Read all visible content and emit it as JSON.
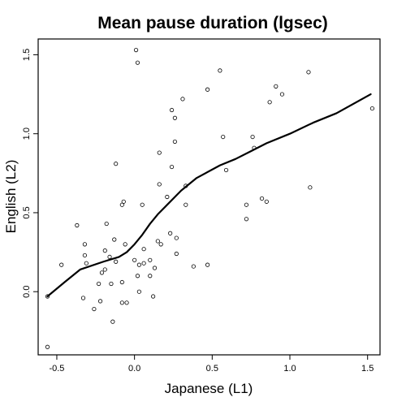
{
  "chart_data": {
    "type": "scatter",
    "title": "Mean pause duration (lgsec)",
    "xlabel": "Japanese (L1)",
    "ylabel": "English (L2)",
    "xlim": [
      -0.62,
      1.58
    ],
    "ylim": [
      -0.4,
      1.6
    ],
    "x_ticks": [
      -0.5,
      0.0,
      0.5,
      1.0,
      1.5
    ],
    "x_tick_labels": [
      "-0.5",
      "0.0",
      "0.5",
      "1.0",
      "1.5"
    ],
    "y_ticks": [
      0.0,
      0.5,
      1.0,
      1.5
    ],
    "y_tick_labels": [
      "0.0",
      "0.5",
      "1.0",
      "1.5"
    ],
    "grid": false,
    "legend": "none",
    "series": [
      {
        "type": "scatter",
        "marker": "open-circle",
        "points": [
          [
            -0.56,
            -0.35
          ],
          [
            -0.56,
            -0.03
          ],
          [
            -0.47,
            0.17
          ],
          [
            -0.37,
            0.42
          ],
          [
            -0.32,
            0.3
          ],
          [
            -0.31,
            0.18
          ],
          [
            -0.32,
            0.23
          ],
          [
            -0.33,
            -0.04
          ],
          [
            -0.26,
            -0.11
          ],
          [
            -0.23,
            0.05
          ],
          [
            -0.22,
            -0.06
          ],
          [
            -0.21,
            0.12
          ],
          [
            -0.19,
            0.14
          ],
          [
            -0.19,
            0.26
          ],
          [
            -0.18,
            0.43
          ],
          [
            -0.16,
            0.22
          ],
          [
            -0.15,
            0.05
          ],
          [
            -0.14,
            -0.19
          ],
          [
            -0.13,
            0.33
          ],
          [
            -0.12,
            0.81
          ],
          [
            -0.12,
            0.19
          ],
          [
            -0.08,
            0.55
          ],
          [
            -0.07,
            0.57
          ],
          [
            -0.06,
            0.3
          ],
          [
            -0.08,
            0.06
          ],
          [
            -0.08,
            -0.07
          ],
          [
            -0.05,
            -0.07
          ],
          [
            0.0,
            0.2
          ],
          [
            0.01,
            1.53
          ],
          [
            0.02,
            1.45
          ],
          [
            0.02,
            0.1
          ],
          [
            0.03,
            0.17
          ],
          [
            0.03,
            0.0
          ],
          [
            0.05,
            0.55
          ],
          [
            0.06,
            0.18
          ],
          [
            0.06,
            0.27
          ],
          [
            0.1,
            0.2
          ],
          [
            0.1,
            0.1
          ],
          [
            0.12,
            -0.03
          ],
          [
            0.13,
            0.15
          ],
          [
            0.16,
            0.88
          ],
          [
            0.16,
            0.68
          ],
          [
            0.15,
            0.32
          ],
          [
            0.17,
            0.3
          ],
          [
            0.21,
            0.6
          ],
          [
            0.23,
            0.37
          ],
          [
            0.24,
            0.79
          ],
          [
            0.24,
            1.15
          ],
          [
            0.26,
            0.95
          ],
          [
            0.26,
            1.1
          ],
          [
            0.27,
            0.34
          ],
          [
            0.27,
            0.24
          ],
          [
            0.31,
            1.22
          ],
          [
            0.33,
            0.67
          ],
          [
            0.33,
            0.55
          ],
          [
            0.38,
            0.16
          ],
          [
            0.47,
            0.17
          ],
          [
            0.47,
            1.28
          ],
          [
            0.55,
            1.4
          ],
          [
            0.57,
            0.98
          ],
          [
            0.59,
            0.77
          ],
          [
            0.72,
            0.55
          ],
          [
            0.72,
            0.46
          ],
          [
            0.76,
            0.98
          ],
          [
            0.77,
            0.91
          ],
          [
            0.82,
            0.59
          ],
          [
            0.85,
            0.57
          ],
          [
            0.87,
            1.2
          ],
          [
            0.91,
            1.3
          ],
          [
            0.95,
            1.25
          ],
          [
            1.12,
            1.39
          ],
          [
            1.13,
            0.66
          ],
          [
            1.53,
            1.16
          ]
        ]
      },
      {
        "type": "line",
        "smoother": true,
        "points": [
          [
            -0.56,
            -0.03
          ],
          [
            -0.45,
            0.06
          ],
          [
            -0.35,
            0.14
          ],
          [
            -0.2,
            0.19
          ],
          [
            -0.1,
            0.22
          ],
          [
            -0.05,
            0.25
          ],
          [
            0.0,
            0.3
          ],
          [
            0.05,
            0.36
          ],
          [
            0.1,
            0.43
          ],
          [
            0.15,
            0.49
          ],
          [
            0.2,
            0.54
          ],
          [
            0.3,
            0.64
          ],
          [
            0.4,
            0.72
          ],
          [
            0.55,
            0.8
          ],
          [
            0.65,
            0.84
          ],
          [
            0.75,
            0.89
          ],
          [
            0.85,
            0.94
          ],
          [
            1.0,
            1.0
          ],
          [
            1.15,
            1.07
          ],
          [
            1.3,
            1.13
          ],
          [
            1.52,
            1.25
          ]
        ]
      }
    ]
  }
}
